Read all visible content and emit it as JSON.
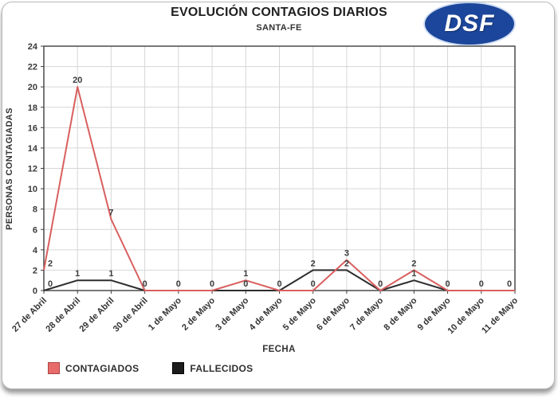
{
  "header": {
    "title": "EVOLUCIÓN CONTAGIOS DIARIOS",
    "subtitle": "SANTA-FE",
    "logo_text": "DSF",
    "logo_color": "#1c469b"
  },
  "chart_data": {
    "type": "line",
    "categories": [
      "27 de Abril",
      "28 de Abril",
      "29 de Abril",
      "30 de Abril",
      "1 de Mayo",
      "2 de Mayo",
      "3 de Mayo",
      "4 de Mayo",
      "5 de Mayo",
      "6 de Mayo",
      "7 de Mayo",
      "8 de Mayo",
      "9 de Mayo",
      "10 de Mayo",
      "11 de Mayo"
    ],
    "series": [
      {
        "name": "CONTAGIADOS",
        "color": "#d95f5f",
        "values": [
          2,
          20,
          7,
          0,
          0,
          0,
          1,
          0,
          0,
          3,
          0,
          2,
          0,
          0,
          0
        ]
      },
      {
        "name": "FALLECIDOS",
        "color": "#2d2d2d",
        "values": [
          0,
          1,
          1,
          0,
          0,
          0,
          0,
          0,
          2,
          2,
          0,
          1,
          0,
          0,
          0
        ]
      }
    ],
    "title": "EVOLUCIÓN CONTAGIOS DIARIOS",
    "subtitle": "SANTA-FE",
    "xlabel": "FECHA",
    "ylabel": "PERSONAS CONTAGIADAS",
    "ylim": [
      0,
      24
    ],
    "ytick_step": 2,
    "grid": true,
    "legend_position": "bottom-left",
    "grid_color": "#d6d6d6",
    "axis_color": "#3f3f3f",
    "data_label_color": "#3d3d3d"
  },
  "legend": {
    "items": [
      {
        "label": "CONTAGIADOS",
        "fill": "#e96a6a",
        "border": "#a94442"
      },
      {
        "label": "FALLECIDOS",
        "fill": "#1c1c1c",
        "border": "#000000"
      }
    ]
  }
}
